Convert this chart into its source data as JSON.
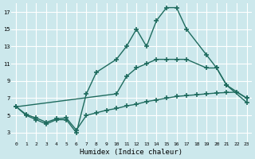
{
  "xlabel": "Humidex (Indice chaleur)",
  "background_color": "#cce8ec",
  "grid_color": "#ffffff",
  "line_color": "#1e6b5e",
  "xlim": [
    -0.5,
    23.5
  ],
  "ylim": [
    2.0,
    18.0
  ],
  "xticks": [
    0,
    1,
    2,
    3,
    4,
    5,
    6,
    7,
    8,
    9,
    10,
    11,
    12,
    13,
    14,
    15,
    16,
    17,
    18,
    19,
    20,
    21,
    22,
    23
  ],
  "yticks": [
    3,
    5,
    7,
    9,
    11,
    13,
    15,
    17
  ],
  "line1_x": [
    0,
    1,
    2,
    3,
    4,
    5,
    6,
    7,
    8,
    10,
    11,
    12,
    13,
    14,
    15,
    16,
    17,
    19,
    20,
    21,
    23
  ],
  "line1_y": [
    6,
    5,
    4.5,
    4,
    4.5,
    4.5,
    3,
    7.5,
    10,
    11.5,
    13,
    15,
    13,
    16,
    17.5,
    17.5,
    15,
    12,
    10.5,
    8.5,
    6.5
  ],
  "line2_x": [
    0,
    10,
    11,
    12,
    13,
    14,
    15,
    16,
    17,
    19,
    20,
    21,
    23
  ],
  "line2_y": [
    6,
    7.5,
    9.5,
    10.5,
    11.0,
    11.5,
    11.5,
    11.5,
    11.5,
    10.5,
    10.5,
    8.5,
    7.0
  ],
  "line3_x": [
    0,
    1,
    2,
    3,
    4,
    5,
    6,
    7,
    8,
    9,
    10,
    11,
    12,
    13,
    14,
    15,
    16,
    17,
    18,
    19,
    20,
    21,
    22,
    23
  ],
  "line3_y": [
    6.0,
    5.1,
    4.7,
    4.2,
    4.6,
    4.7,
    3.3,
    5.0,
    5.3,
    5.6,
    5.8,
    6.1,
    6.3,
    6.6,
    6.8,
    7.0,
    7.2,
    7.3,
    7.4,
    7.5,
    7.6,
    7.65,
    7.7,
    7.0
  ]
}
